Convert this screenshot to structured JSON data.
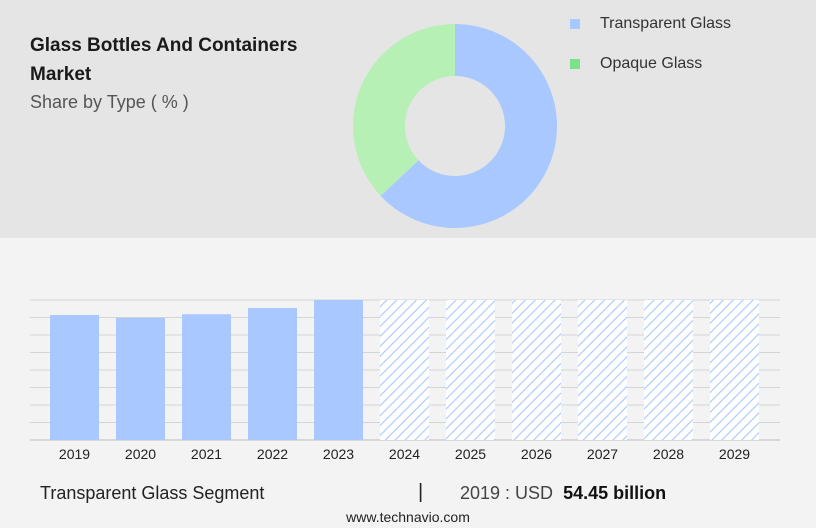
{
  "header": {
    "title": "Glass Bottles And Containers Market",
    "subtitle": "Share by Type ( % )"
  },
  "legend": [
    {
      "label": "Transparent Glass",
      "color": "#a8c8ff"
    },
    {
      "label": "Opaque Glass",
      "color": "#7de08a"
    }
  ],
  "chart_data": [
    {
      "type": "pie",
      "subtype": "donut",
      "categories": [
        "Transparent Glass",
        "Opaque Glass"
      ],
      "values": [
        63,
        37
      ],
      "colors": [
        "#a8c8ff",
        "#b7f0b5"
      ]
    },
    {
      "type": "bar",
      "categories": [
        "2019",
        "2020",
        "2021",
        "2022",
        "2023",
        "2024",
        "2025",
        "2026",
        "2027",
        "2028",
        "2029"
      ],
      "values": [
        54.45,
        53.2,
        54.8,
        57.5,
        61.0,
        61.0,
        61.0,
        61.0,
        61.0,
        61.0,
        61.0
      ],
      "forecast_from": "2024",
      "color": "#a8c8ff",
      "grid": true,
      "ylim": [
        0,
        61
      ]
    }
  ],
  "footer": {
    "segment_label": "Transparent Glass Segment",
    "divider": "|",
    "value_prefix": "2019 : USD",
    "value_bold": "54.45 billion",
    "source": "www.technavio.com"
  }
}
